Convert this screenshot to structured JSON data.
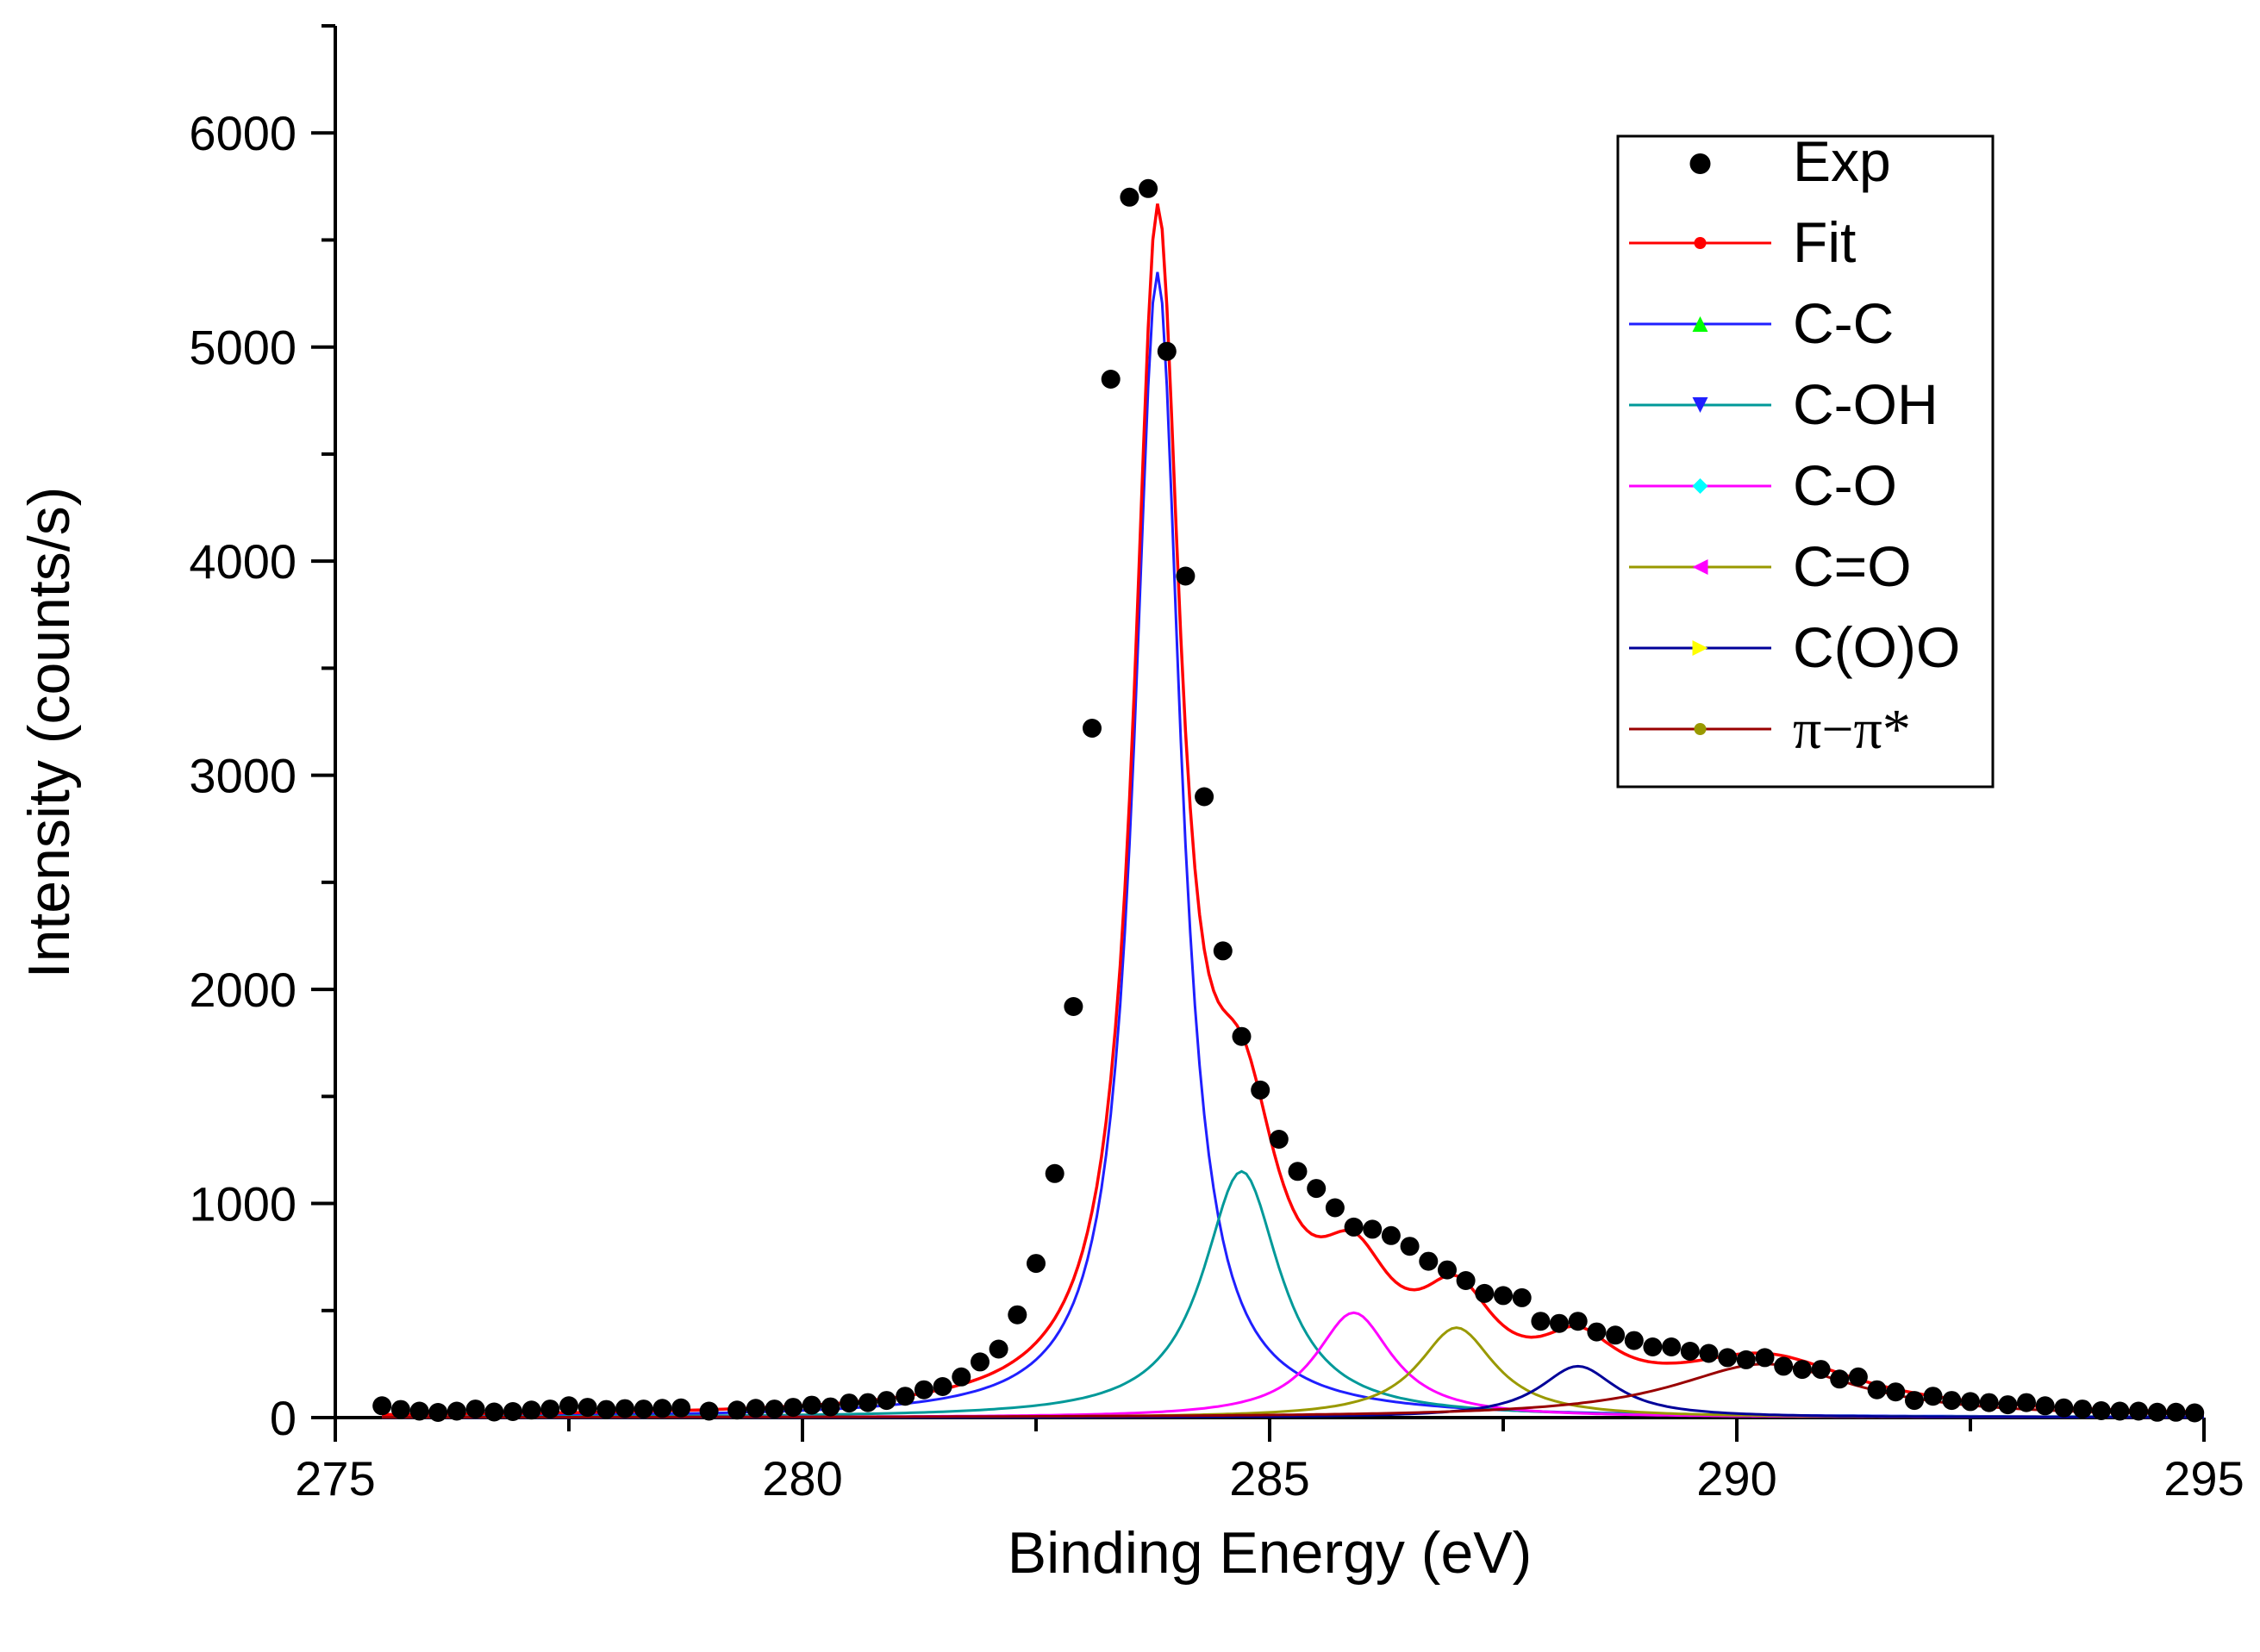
{
  "chart_data": {
    "type": "line",
    "title": "",
    "xlabel": "Binding Energy (eV)",
    "ylabel": "Intensity (counts/s)",
    "xlim": [
      275,
      295
    ],
    "ylim": [
      0,
      6500
    ],
    "xticks": [
      275,
      280,
      285,
      290,
      295
    ],
    "xtick_labels": [
      "275",
      "280",
      "285",
      "290",
      "295"
    ],
    "yticks": [
      0,
      1000,
      2000,
      3000,
      4000,
      5000,
      6000
    ],
    "ytick_labels": [
      "0",
      "1000",
      "2000",
      "3000",
      "4000",
      "5000",
      "6000"
    ],
    "grid": false,
    "legend_position": "top-right",
    "experimental": {
      "name": "Exp",
      "color": "#000000",
      "x": [
        275.5,
        275.7,
        275.9,
        276.1,
        276.3,
        276.5,
        276.7,
        276.9,
        277.1,
        277.3,
        277.5,
        277.7,
        277.9,
        278.1,
        278.3,
        278.5,
        278.7,
        279.0,
        279.3,
        279.5,
        279.7,
        279.9,
        280.1,
        280.3,
        280.5,
        280.7,
        280.9,
        281.1,
        281.3,
        281.5,
        281.7,
        281.9,
        282.1,
        282.3,
        282.5,
        282.7,
        282.9,
        283.1,
        283.3,
        283.5,
        283.7,
        283.9,
        284.1,
        284.3,
        284.5,
        284.7,
        284.9,
        285.1,
        285.3,
        285.5,
        285.7,
        285.9,
        286.1,
        286.3,
        286.5,
        286.7,
        286.9,
        287.1,
        287.3,
        287.5,
        287.7,
        287.9,
        288.1,
        288.3,
        288.5,
        288.7,
        288.9,
        289.1,
        289.3,
        289.5,
        289.7,
        289.9,
        290.1,
        290.3,
        290.5,
        290.7,
        290.9,
        291.1,
        291.3,
        291.5,
        291.7,
        291.9,
        292.1,
        292.3,
        292.5,
        292.7,
        292.9,
        293.1,
        293.3,
        293.5,
        293.7,
        293.9,
        294.1,
        294.3,
        294.5,
        294.7,
        294.9
      ],
      "y": [
        55,
        38,
        30,
        24,
        30,
        40,
        26,
        28,
        35,
        40,
        55,
        48,
        38,
        42,
        40,
        43,
        45,
        30,
        35,
        43,
        40,
        48,
        58,
        50,
        68,
        70,
        80,
        100,
        130,
        145,
        190,
        260,
        320,
        480,
        720,
        1140,
        1920,
        3220,
        4850,
        5700,
        5740,
        4980,
        3930,
        2900,
        2180,
        1780,
        1530,
        1300,
        1150,
        1070,
        980,
        890,
        880,
        850,
        800,
        730,
        690,
        640,
        580,
        570,
        560,
        450,
        440,
        450,
        400,
        385,
        360,
        330,
        330,
        310,
        300,
        280,
        270,
        280,
        240,
        225,
        225,
        180,
        190,
        130,
        120,
        80,
        100,
        80,
        75,
        70,
        60,
        70,
        55,
        45,
        40,
        32,
        30,
        30,
        25,
        25,
        22
      ]
    },
    "series": [
      {
        "name": "Fit",
        "color": "#ff0000",
        "marker": "circle",
        "components": [
          {
            "center": 283.8,
            "amp": 5350,
            "w": 0.3
          },
          {
            "center": 284.7,
            "amp": 1150,
            "w": 0.5
          },
          {
            "center": 285.9,
            "amp": 490,
            "w": 0.5
          },
          {
            "center": 287.0,
            "amp": 420,
            "w": 0.5
          },
          {
            "center": 288.3,
            "amp": 240,
            "w": 0.5
          },
          {
            "center": 290.3,
            "amp": 250,
            "w": 1.2
          }
        ]
      },
      {
        "name": "C-C",
        "color": "#1f1fff",
        "marker": "triangle-up",
        "marker_color": "#00ff00",
        "center": 283.8,
        "amp": 5350,
        "w": 0.3
      },
      {
        "name": "C-OH",
        "color": "#009999",
        "marker": "triangle-down",
        "marker_color": "#1f1fff",
        "center": 284.7,
        "amp": 1150,
        "w": 0.5
      },
      {
        "name": "C-O",
        "color": "#ff00ff",
        "marker": "diamond",
        "marker_color": "#00ffff",
        "center": 285.9,
        "amp": 490,
        "w": 0.5
      },
      {
        "name": "C=O",
        "color": "#999900",
        "marker": "triangle-left",
        "marker_color": "#ff00ff",
        "center": 287.0,
        "amp": 420,
        "w": 0.5
      },
      {
        "name": "C(O)O",
        "color": "#000099",
        "marker": "triangle-right",
        "marker_color": "#ffff00",
        "center": 288.3,
        "amp": 240,
        "w": 0.5
      },
      {
        "name": "π−π*",
        "color": "#990000",
        "marker": "circle",
        "marker_color": "#999900",
        "center": 290.3,
        "amp": 250,
        "w": 1.2
      }
    ]
  }
}
